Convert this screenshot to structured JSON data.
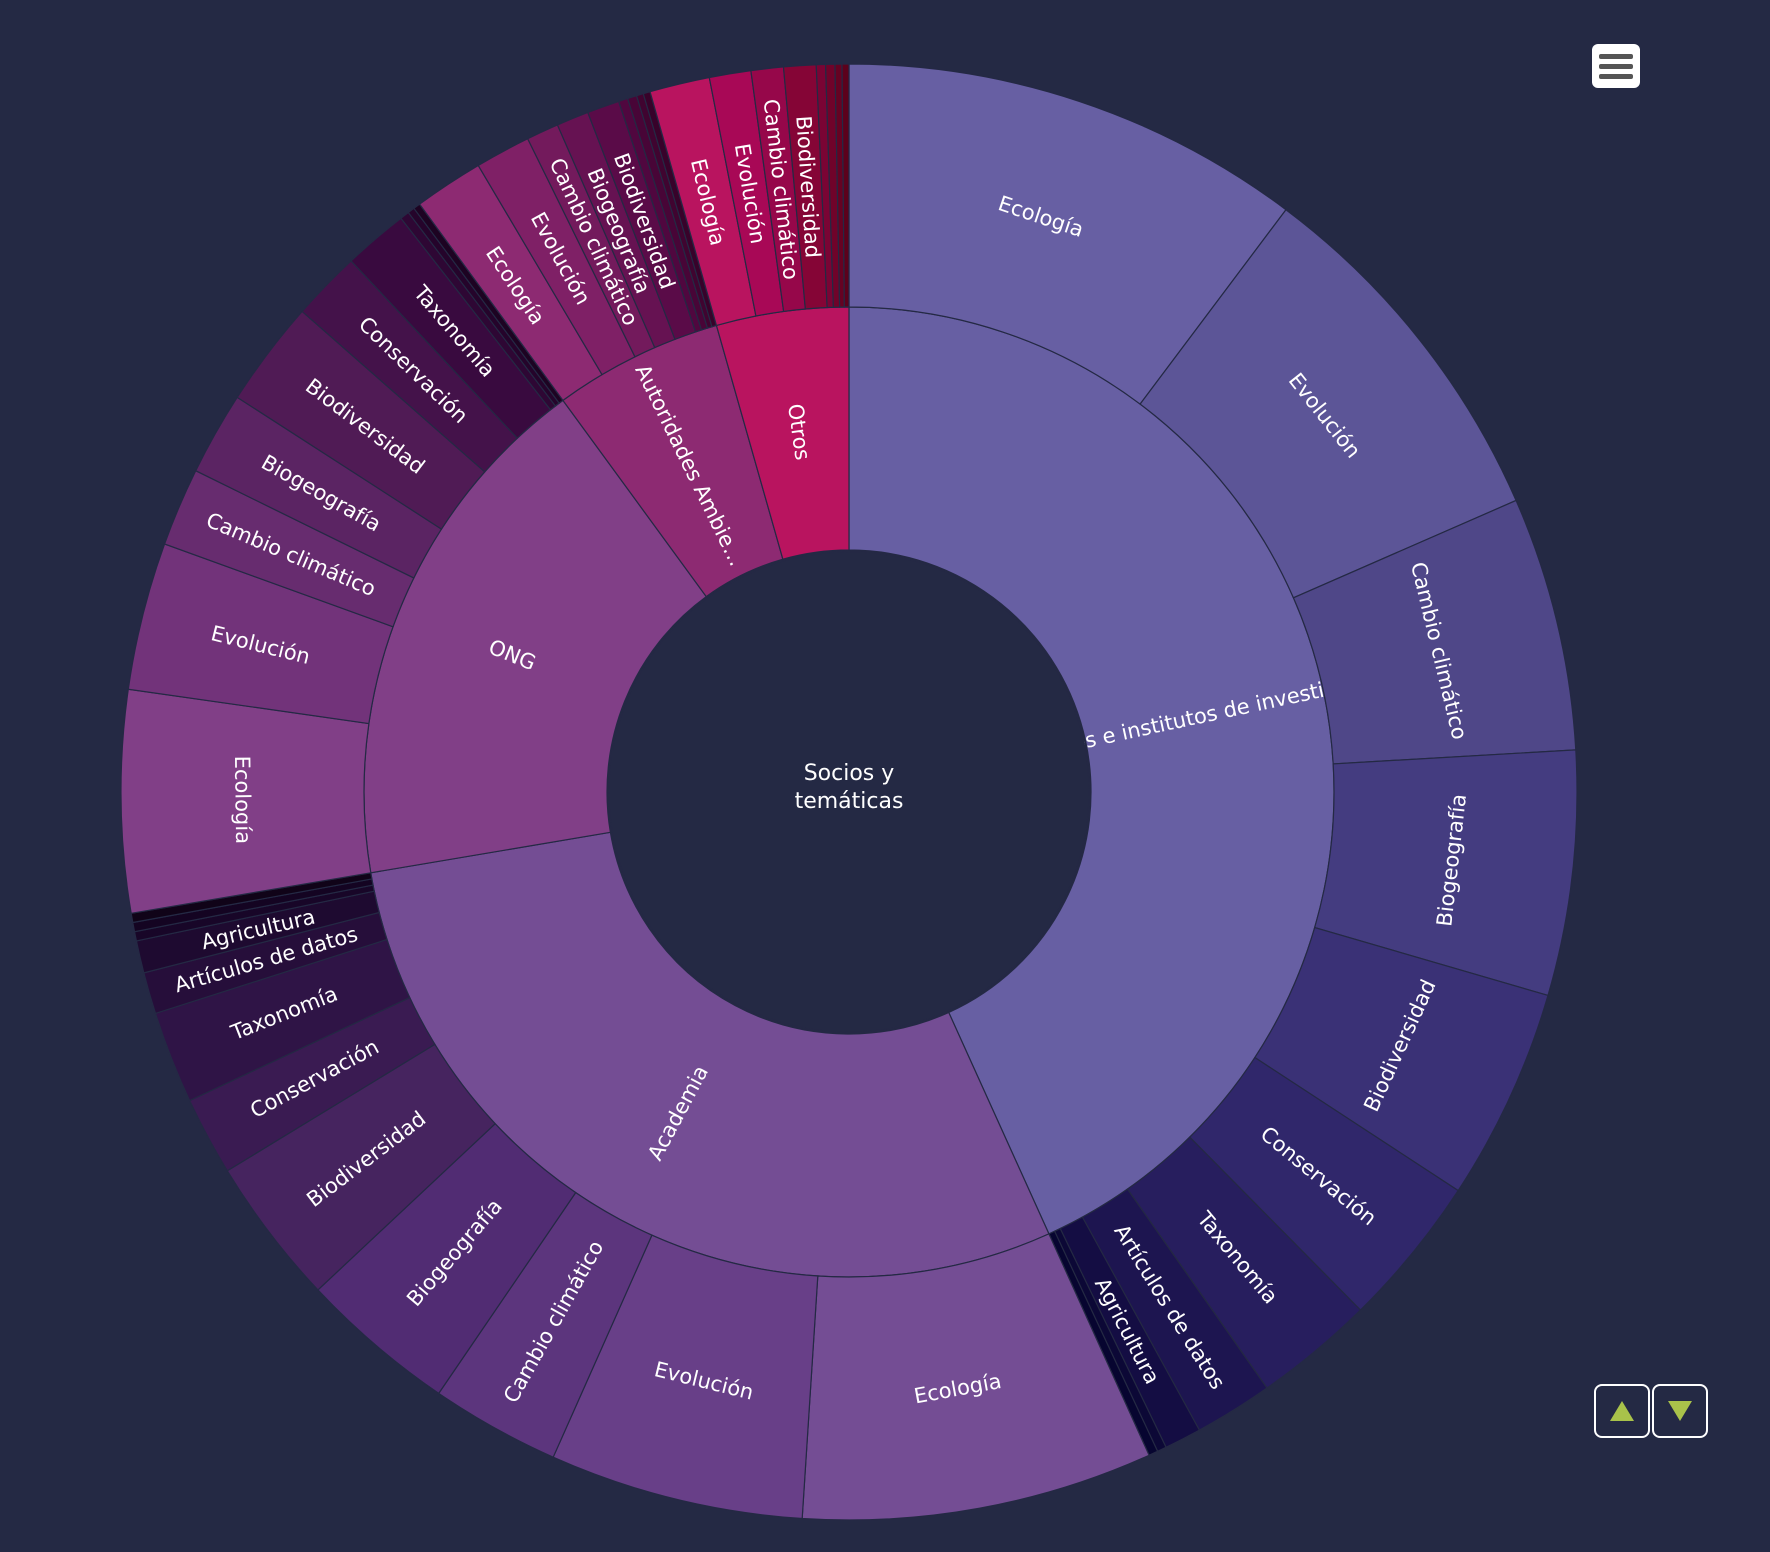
{
  "chart_data": {
    "type": "sunburst",
    "root": {
      "name": "Socios y\ntemáticas"
    },
    "groups": [
      {
        "name": "Centros e institutos de investigación",
        "color": "#675fa3",
        "children": [
          {
            "name": "Ecología",
            "value": 100,
            "color": "#675fa3"
          },
          {
            "name": "Evolución",
            "value": 80,
            "color": "#5c5597"
          },
          {
            "name": "Cambio climático",
            "value": 55,
            "color": "#4f4788"
          },
          {
            "name": "Biogeografía",
            "value": 53,
            "color": "#443c80"
          },
          {
            "name": "Biodiversidad",
            "value": 46,
            "color": "#3a3176"
          },
          {
            "name": "Conservación",
            "value": 33,
            "color": "#30276b"
          },
          {
            "name": "Taxonomía",
            "value": 26,
            "color": "#271e5e"
          },
          {
            "name": "Artículos de datos",
            "value": 17,
            "color": "#1d1550"
          },
          {
            "name": "Agricultura",
            "value": 8,
            "color": "#140d43"
          },
          {
            "name": "",
            "value": 2,
            "color": "#0c0836"
          },
          {
            "name": "",
            "value": 2,
            "color": "#070530"
          }
        ]
      },
      {
        "name": "Academia",
        "color": "#744d94",
        "children": [
          {
            "name": "Ecología",
            "value": 76,
            "color": "#744d94"
          },
          {
            "name": "Evolución",
            "value": 55,
            "color": "#683f88"
          },
          {
            "name": "Cambio climático",
            "value": 28,
            "color": "#5c357d"
          },
          {
            "name": "Biogeografía",
            "value": 34,
            "color": "#512c73"
          },
          {
            "name": "Biodiversidad",
            "value": 32,
            "color": "#46245f"
          },
          {
            "name": "Conservación",
            "value": 17,
            "color": "#3a1b52"
          },
          {
            "name": "Taxonomía",
            "value": 20,
            "color": "#2f1446"
          },
          {
            "name": "Artículos de datos",
            "value": 9,
            "color": "#260e3a"
          },
          {
            "name": "Agricultura",
            "value": 7,
            "color": "#1e0a30"
          },
          {
            "name": "",
            "value": 2,
            "color": "#180628"
          },
          {
            "name": "",
            "value": 2,
            "color": "#140422"
          },
          {
            "name": "",
            "value": 2,
            "color": "#100318"
          }
        ]
      },
      {
        "name": "ONG",
        "color": "#813f87",
        "children": [
          {
            "name": "Ecología",
            "value": 48,
            "color": "#813f87"
          },
          {
            "name": "Evolución",
            "value": 32,
            "color": "#72337a"
          },
          {
            "name": "Cambio climático",
            "value": 17,
            "color": "#672c6f"
          },
          {
            "name": "Biogeografía",
            "value": 18,
            "color": "#5b2463"
          },
          {
            "name": "Biodiversidad",
            "value": 23,
            "color": "#501b55"
          },
          {
            "name": "Conservación",
            "value": 15,
            "color": "#44124a"
          },
          {
            "name": "Taxonomía",
            "value": 14,
            "color": "#390a3f"
          },
          {
            "name": "",
            "value": 2,
            "color": "#2e0734"
          },
          {
            "name": "",
            "value": 1.5,
            "color": "#25042b"
          },
          {
            "name": "",
            "value": 1.5,
            "color": "#1d0322"
          }
        ]
      },
      {
        "name": "Autoridades Ambie…",
        "color": "#8d2a72",
        "children": [
          {
            "name": "Ecología",
            "value": 15,
            "color": "#8d2a72"
          },
          {
            "name": "Evolución",
            "value": 12,
            "color": "#7f2066"
          },
          {
            "name": "Cambio climático",
            "value": 7,
            "color": "#731a5c"
          },
          {
            "name": "Biogeografía",
            "value": 7,
            "color": "#661252"
          },
          {
            "name": "Biodiversidad",
            "value": 7,
            "color": "#5a0b48"
          },
          {
            "name": "",
            "value": 2,
            "color": "#50073f"
          },
          {
            "name": "",
            "value": 2,
            "color": "#480537"
          },
          {
            "name": "",
            "value": 1.5,
            "color": "#400430"
          },
          {
            "name": "",
            "value": 1.5,
            "color": "#38022a"
          }
        ]
      },
      {
        "name": "Otros",
        "color": "#b9145f",
        "children": [
          {
            "name": "Ecología",
            "value": 13,
            "color": "#b9145f"
          },
          {
            "name": "Evolución",
            "value": 9,
            "color": "#a80856"
          },
          {
            "name": "Cambio climático",
            "value": 7,
            "color": "#96074a"
          },
          {
            "name": "Biodiversidad",
            "value": 7,
            "color": "#850536"
          },
          {
            "name": "",
            "value": 2,
            "color": "#7a0434"
          },
          {
            "name": "",
            "value": 2,
            "color": "#70032a"
          },
          {
            "name": "",
            "value": 1.5,
            "color": "#660222"
          },
          {
            "name": "",
            "value": 1.5,
            "color": "#5c011c"
          }
        ]
      }
    ]
  },
  "controls": {
    "menu_icon": "hamburger-menu-icon",
    "up_icon": "triangle-up-icon",
    "down_icon": "triangle-down-icon",
    "arrow_color": "#a9c24a"
  }
}
